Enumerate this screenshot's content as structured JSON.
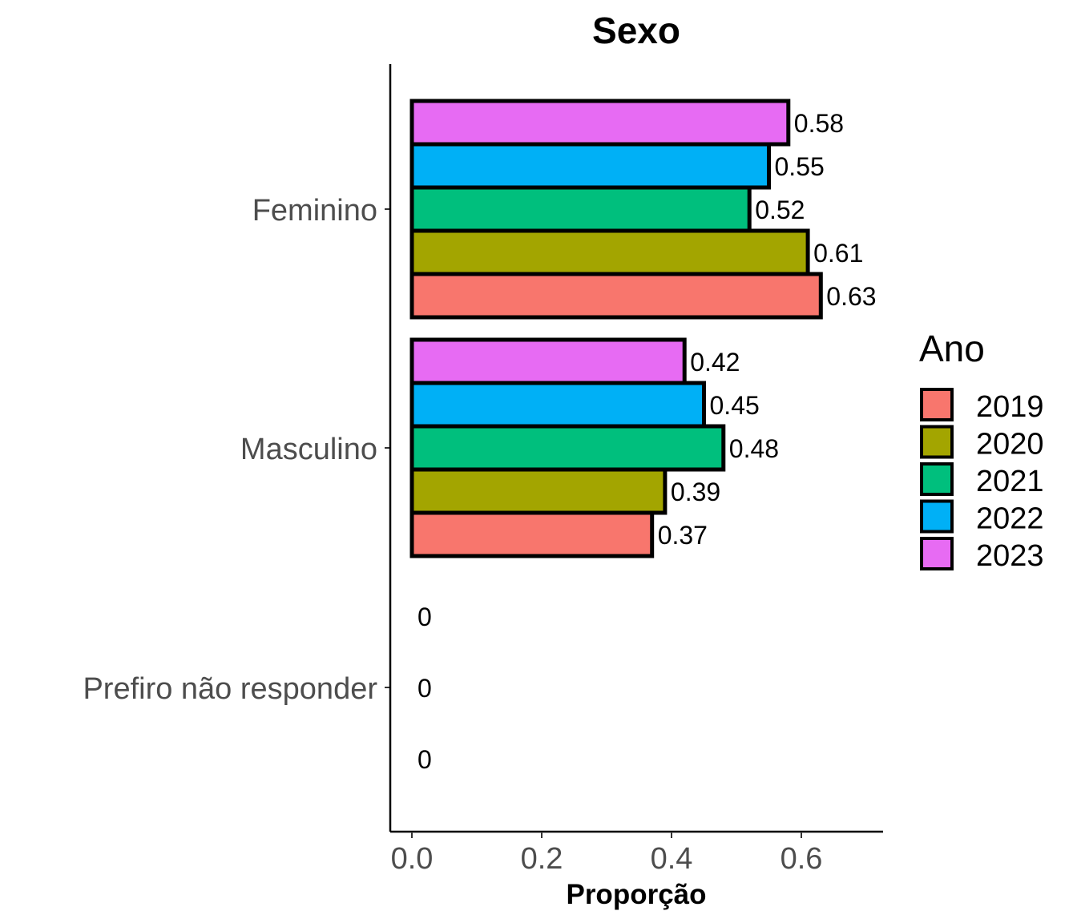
{
  "chart_data": {
    "type": "bar",
    "orientation": "horizontal",
    "title": "Sexo",
    "xlabel": "Proporção",
    "ylabel": "",
    "categories": [
      "Feminino",
      "Masculino",
      "Prefiro não responder"
    ],
    "xlim": [
      0,
      0.7
    ],
    "x_ticks": [
      0.0,
      0.2,
      0.4,
      0.6
    ],
    "x_tick_labels": [
      "0.0",
      "0.2",
      "0.4",
      "0.6"
    ],
    "legend": {
      "title": "Ano",
      "placement": "right"
    },
    "series": [
      {
        "name": "2019",
        "color": "#F8766D",
        "values": [
          0.63,
          0.37,
          0
        ],
        "labels": [
          "0.63",
          "0.37",
          "0"
        ]
      },
      {
        "name": "2020",
        "color": "#A3A500",
        "values": [
          0.61,
          0.39,
          null
        ],
        "labels": [
          "0.61",
          "0.39",
          ""
        ]
      },
      {
        "name": "2021",
        "color": "#00BF7D",
        "values": [
          0.52,
          0.48,
          0
        ],
        "labels": [
          "0.52",
          "0.48",
          "0"
        ]
      },
      {
        "name": "2022",
        "color": "#00B0F6",
        "values": [
          0.55,
          0.45,
          null
        ],
        "labels": [
          "0.55",
          "0.45",
          ""
        ]
      },
      {
        "name": "2023",
        "color": "#E76BF3",
        "values": [
          0.58,
          0.42,
          0
        ],
        "labels": [
          "0.58",
          "0.42",
          "0"
        ]
      }
    ],
    "grid": false
  }
}
